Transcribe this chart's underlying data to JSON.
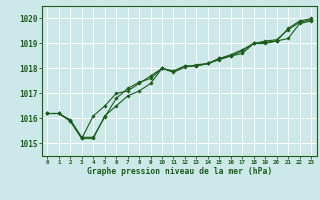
{
  "title": "Graphe pression niveau de la mer (hPa)",
  "xlabel": "Graphe pression niveau de la mer (hPa)",
  "ylim": [
    1014.5,
    1020.5
  ],
  "xlim": [
    -0.5,
    23.5
  ],
  "yticks": [
    1015,
    1016,
    1017,
    1018,
    1019,
    1020
  ],
  "xticks": [
    0,
    1,
    2,
    3,
    4,
    5,
    6,
    7,
    8,
    9,
    10,
    11,
    12,
    13,
    14,
    15,
    16,
    17,
    18,
    19,
    20,
    21,
    22,
    23
  ],
  "bg_color": "#cce8e8",
  "grid_color": "#ffffff",
  "line_color": "#1a5c1a",
  "series1": [
    1016.2,
    1016.2,
    1015.9,
    1015.2,
    1015.2,
    1016.1,
    1016.5,
    1016.9,
    1017.1,
    1017.4,
    1018.0,
    1017.9,
    1018.1,
    1018.1,
    1018.2,
    1018.4,
    1018.5,
    1018.6,
    1019.0,
    1019.0,
    1019.1,
    1019.2,
    1019.8,
    1019.9
  ],
  "series2": [
    1016.2,
    1016.2,
    1015.9,
    1015.2,
    1016.1,
    1016.5,
    1017.0,
    1017.1,
    1017.4,
    1017.7,
    1018.0,
    1017.9,
    1018.1,
    1018.1,
    1018.2,
    1018.35,
    1018.5,
    1018.7,
    1019.0,
    1019.05,
    1019.1,
    1019.6,
    1019.9,
    1020.0
  ],
  "series3": [
    1016.2,
    1016.2,
    1015.95,
    1015.25,
    1015.25,
    1016.05,
    1016.8,
    1017.2,
    1017.45,
    1017.6,
    1018.0,
    1017.85,
    1018.05,
    1018.15,
    1018.2,
    1018.4,
    1018.55,
    1018.75,
    1019.0,
    1019.1,
    1019.15,
    1019.55,
    1019.85,
    1019.95
  ],
  "figsize": [
    3.2,
    2.0
  ],
  "dpi": 100
}
